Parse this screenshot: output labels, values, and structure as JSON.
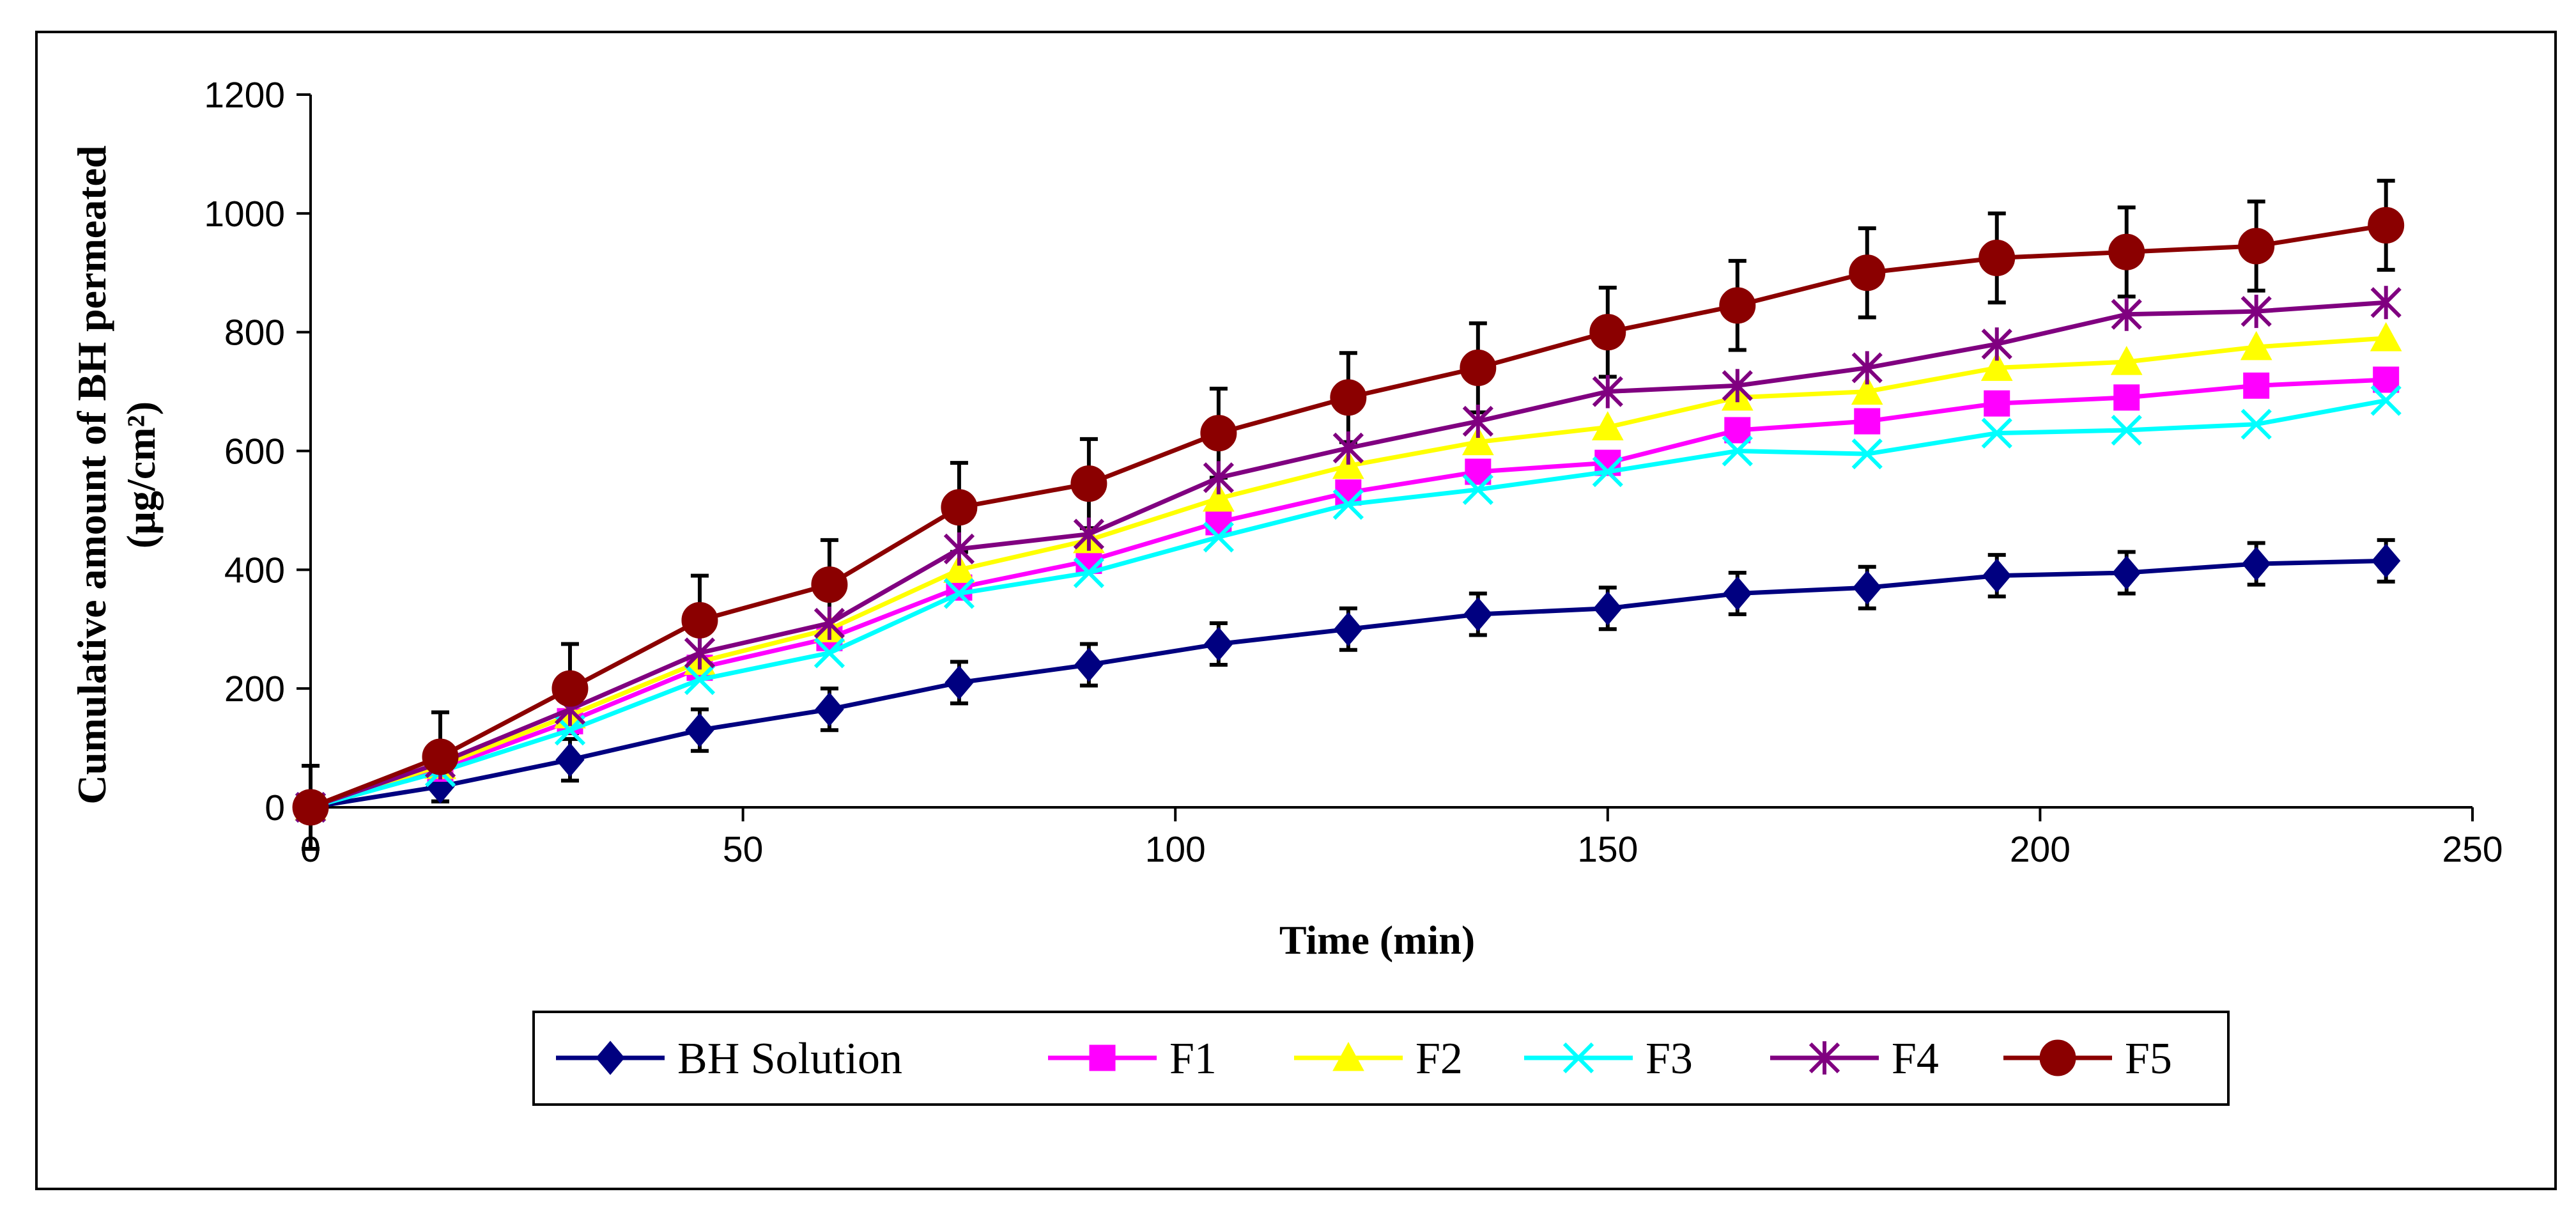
{
  "chart_data": {
    "type": "line",
    "title": "",
    "xlabel": "Time (min)",
    "ylabel_line1": "Cumulative amount of BH permeated",
    "ylabel_line2": "(µg/cm²)",
    "xlim": [
      0,
      250
    ],
    "ylim": [
      0,
      1200
    ],
    "xticks": [
      0,
      50,
      100,
      150,
      200,
      250
    ],
    "yticks": [
      0,
      200,
      400,
      600,
      800,
      1000,
      1200
    ],
    "x": [
      0,
      15,
      30,
      45,
      60,
      75,
      90,
      105,
      120,
      135,
      150,
      165,
      180,
      195,
      210,
      225,
      240
    ],
    "legend_position": "bottom",
    "series": [
      {
        "name": "BH Solution",
        "color": "#000080",
        "marker": "diamond",
        "values": [
          0,
          35,
          80,
          130,
          165,
          210,
          240,
          275,
          300,
          325,
          335,
          360,
          370,
          390,
          395,
          410,
          415
        ],
        "error": [
          0,
          25,
          35,
          35,
          35,
          35,
          35,
          35,
          35,
          35,
          35,
          35,
          35,
          35,
          35,
          35,
          35
        ]
      },
      {
        "name": "F1",
        "color": "#FF00FF",
        "marker": "square",
        "values": [
          0,
          65,
          145,
          235,
          285,
          370,
          415,
          480,
          530,
          565,
          580,
          635,
          650,
          680,
          690,
          710,
          720
        ],
        "error": []
      },
      {
        "name": "F2",
        "color": "#FFFF00",
        "marker": "triangle",
        "values": [
          0,
          70,
          155,
          245,
          300,
          400,
          450,
          520,
          575,
          615,
          640,
          690,
          700,
          740,
          750,
          775,
          790
        ],
        "error": []
      },
      {
        "name": "F3",
        "color": "#00FFFF",
        "marker": "x",
        "values": [
          0,
          60,
          130,
          215,
          260,
          360,
          395,
          455,
          510,
          535,
          565,
          600,
          595,
          630,
          635,
          645,
          685
        ],
        "error": []
      },
      {
        "name": "F4",
        "color": "#800080",
        "marker": "star",
        "values": [
          0,
          75,
          165,
          260,
          310,
          435,
          460,
          555,
          605,
          650,
          700,
          710,
          740,
          780,
          830,
          835,
          850
        ],
        "error": []
      },
      {
        "name": "F5",
        "color": "#8B0000",
        "marker": "circle",
        "values": [
          0,
          85,
          200,
          315,
          375,
          505,
          545,
          630,
          690,
          740,
          800,
          845,
          900,
          925,
          935,
          945,
          980
        ],
        "error": [
          70,
          75,
          75,
          75,
          75,
          75,
          75,
          75,
          75,
          75,
          75,
          75,
          75,
          75,
          75,
          75,
          75
        ]
      }
    ]
  }
}
